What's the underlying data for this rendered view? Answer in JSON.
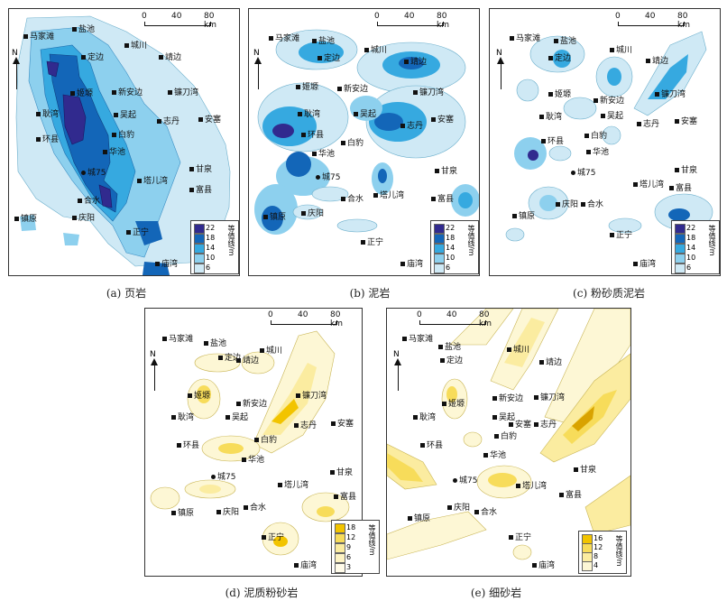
{
  "scale": {
    "ticks": [
      "0",
      "40",
      "80 km"
    ]
  },
  "north": "N",
  "legend_title": "等值线/m",
  "colors": {
    "blue": [
      "#cfe9f5",
      "#8dd0ee",
      "#36a9e0",
      "#1366b8",
      "#312a8e"
    ],
    "yellow": [
      "#fdf7d5",
      "#fbeca0",
      "#f7dc5a",
      "#f2c400",
      "#d9a300"
    ]
  },
  "panels": [
    {
      "id": "a",
      "caption": "(a) 页岩",
      "legend": [
        "22",
        "18",
        "14",
        "10",
        "6"
      ],
      "towns": [
        {
          "name": "盐池"
        },
        {
          "name": "马家滩"
        },
        {
          "name": "城川"
        },
        {
          "name": "靖边"
        },
        {
          "name": "定边"
        },
        {
          "name": "镰刀湾"
        },
        {
          "name": "新安边"
        },
        {
          "name": "姬塬"
        },
        {
          "name": "耿湾"
        },
        {
          "name": "吴起"
        },
        {
          "name": "志丹"
        },
        {
          "name": "安塞"
        },
        {
          "name": "环县"
        },
        {
          "name": "白豹"
        },
        {
          "name": "华池"
        },
        {
          "name": "城75"
        },
        {
          "name": "甘泉"
        },
        {
          "name": "塔儿湾"
        },
        {
          "name": "富县"
        },
        {
          "name": "合水"
        },
        {
          "name": "镇原"
        },
        {
          "name": "庆阳"
        },
        {
          "name": "正宁"
        },
        {
          "name": "庙湾"
        }
      ]
    },
    {
      "id": "b",
      "caption": "(b) 泥岩",
      "legend": [
        "22",
        "18",
        "14",
        "10",
        "6"
      ],
      "towns": [
        {
          "name": "马家滩"
        },
        {
          "name": "盐池"
        },
        {
          "name": "城川"
        },
        {
          "name": "定边"
        },
        {
          "name": "靖边"
        },
        {
          "name": "姬塬"
        },
        {
          "name": "新安边"
        },
        {
          "name": "镰刀湾"
        },
        {
          "name": "耿湾"
        },
        {
          "name": "吴起"
        },
        {
          "name": "志丹"
        },
        {
          "name": "安塞"
        },
        {
          "name": "环县"
        },
        {
          "name": "白豹"
        },
        {
          "name": "华池"
        },
        {
          "name": "城75"
        },
        {
          "name": "甘泉"
        },
        {
          "name": "塔儿湾"
        },
        {
          "name": "合水"
        },
        {
          "name": "富县"
        },
        {
          "name": "镇原"
        },
        {
          "name": "庆阳"
        },
        {
          "name": "正宁"
        },
        {
          "name": "庙湾"
        }
      ]
    },
    {
      "id": "c",
      "caption": "(c) 粉砂质泥岩",
      "legend": [
        "22",
        "18",
        "14",
        "10",
        "6"
      ],
      "towns": [
        {
          "name": "马家滩"
        },
        {
          "name": "盐池"
        },
        {
          "name": "城川"
        },
        {
          "name": "定边"
        },
        {
          "name": "靖边"
        },
        {
          "name": "姬塬"
        },
        {
          "name": "新安边"
        },
        {
          "name": "镰刀湾"
        },
        {
          "name": "吴起"
        },
        {
          "name": "耿湾"
        },
        {
          "name": "志丹"
        },
        {
          "name": "安塞"
        },
        {
          "name": "白豹"
        },
        {
          "name": "环县"
        },
        {
          "name": "华池"
        },
        {
          "name": "城75"
        },
        {
          "name": "甘泉"
        },
        {
          "name": "塔儿湾"
        },
        {
          "name": "富县"
        },
        {
          "name": "合水"
        },
        {
          "name": "镇原"
        },
        {
          "name": "庆阳"
        },
        {
          "name": "正宁"
        },
        {
          "name": "庙湾"
        }
      ]
    },
    {
      "id": "d",
      "caption": "(d) 泥质粉砂岩",
      "legend": [
        "18",
        "12",
        "9",
        "6",
        "3"
      ],
      "towns": [
        {
          "name": "马家滩"
        },
        {
          "name": "盐池"
        },
        {
          "name": "定边"
        },
        {
          "name": "靖边"
        },
        {
          "name": "城川"
        },
        {
          "name": "姬塬"
        },
        {
          "name": "镰刀湾"
        },
        {
          "name": "新安边"
        },
        {
          "name": "耿湾"
        },
        {
          "name": "吴起"
        },
        {
          "name": "志丹"
        },
        {
          "name": "安塞"
        },
        {
          "name": "白豹"
        },
        {
          "name": "环县"
        },
        {
          "name": "华池"
        },
        {
          "name": "城75"
        },
        {
          "name": "塔儿湾"
        },
        {
          "name": "甘泉"
        },
        {
          "name": "合水"
        },
        {
          "name": "富县"
        },
        {
          "name": "镇原"
        },
        {
          "name": "庆阳"
        },
        {
          "name": "正宁"
        },
        {
          "name": "庙湾"
        }
      ]
    },
    {
      "id": "e",
      "caption": "(e) 细砂岩",
      "legend": [
        "16",
        "12",
        "8",
        "4"
      ],
      "towns": [
        {
          "name": "马家滩"
        },
        {
          "name": "盐池"
        },
        {
          "name": "城川"
        },
        {
          "name": "定边"
        },
        {
          "name": "靖边"
        },
        {
          "name": "姬塬"
        },
        {
          "name": "镰刀湾"
        },
        {
          "name": "新安边"
        },
        {
          "name": "耿湾"
        },
        {
          "name": "吴起"
        },
        {
          "name": "安塞"
        },
        {
          "name": "志丹"
        },
        {
          "name": "白豹"
        },
        {
          "name": "环县"
        },
        {
          "name": "华池"
        },
        {
          "name": "甘泉"
        },
        {
          "name": "城75"
        },
        {
          "name": "塔儿湾"
        },
        {
          "name": "富县"
        },
        {
          "name": "庆阳"
        },
        {
          "name": "合水"
        },
        {
          "name": "镇原"
        },
        {
          "name": "正宁"
        },
        {
          "name": "庙湾"
        }
      ]
    }
  ]
}
